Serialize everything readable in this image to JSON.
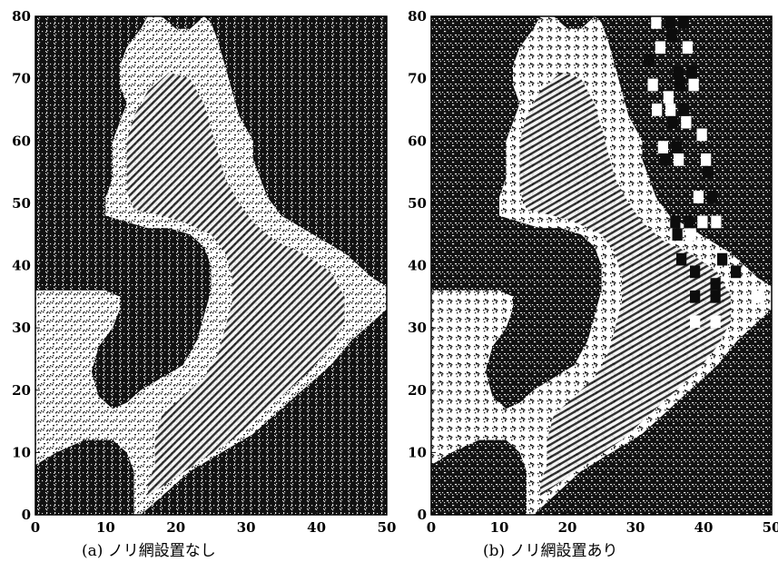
{
  "colors": {
    "sea": "#111111",
    "land": "#ffffff",
    "axis": "#000000"
  },
  "chart_data": [
    {
      "type": "heatmap",
      "caption": "(a)  ノリ網設置なし",
      "xlim": [
        0,
        50
      ],
      "ylim": [
        0,
        80
      ],
      "xticks": [
        0,
        10,
        20,
        30,
        40,
        50
      ],
      "yticks": [
        0,
        10,
        20,
        30,
        40,
        50,
        60,
        70,
        80
      ],
      "grid": false,
      "legend": "none",
      "nori_net": false
    },
    {
      "type": "heatmap",
      "caption": "(b)  ノリ網設置あり",
      "xlim": [
        0,
        50
      ],
      "ylim": [
        0,
        80
      ],
      "xticks": [
        0,
        10,
        20,
        30,
        40,
        50
      ],
      "yticks": [
        0,
        10,
        20,
        30,
        40,
        50,
        60,
        70,
        80
      ],
      "grid": false,
      "legend": "none",
      "nori_net": true
    }
  ]
}
